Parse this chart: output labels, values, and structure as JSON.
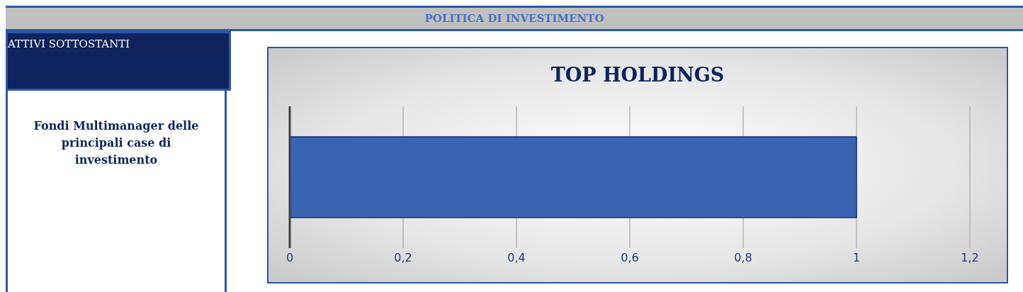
{
  "chart_data": {
    "type": "bar",
    "orientation": "horizontal",
    "title": "TOP HOLDINGS",
    "annotations": [
      "POLITICA DI INVESTIMENTO",
      "ATTIVI SOTTOSTANTI",
      "Fondi Multimanager delle principali case di investimento"
    ],
    "categories": [
      null
    ],
    "values": [
      1
    ],
    "color": "#3a63b3",
    "xlim": [
      0,
      1.2
    ],
    "xticks": [
      0,
      {
        "value": 0.2,
        "label": "0,2"
      },
      {
        "value": 0.4,
        "label": "0,4"
      },
      {
        "value": 0.6,
        "label": "0,6"
      },
      {
        "value": 0.8,
        "label": "0,8"
      },
      1,
      {
        "value": 1.2,
        "label": "1,2"
      }
    ],
    "grid": "x",
    "legend": false
  }
}
